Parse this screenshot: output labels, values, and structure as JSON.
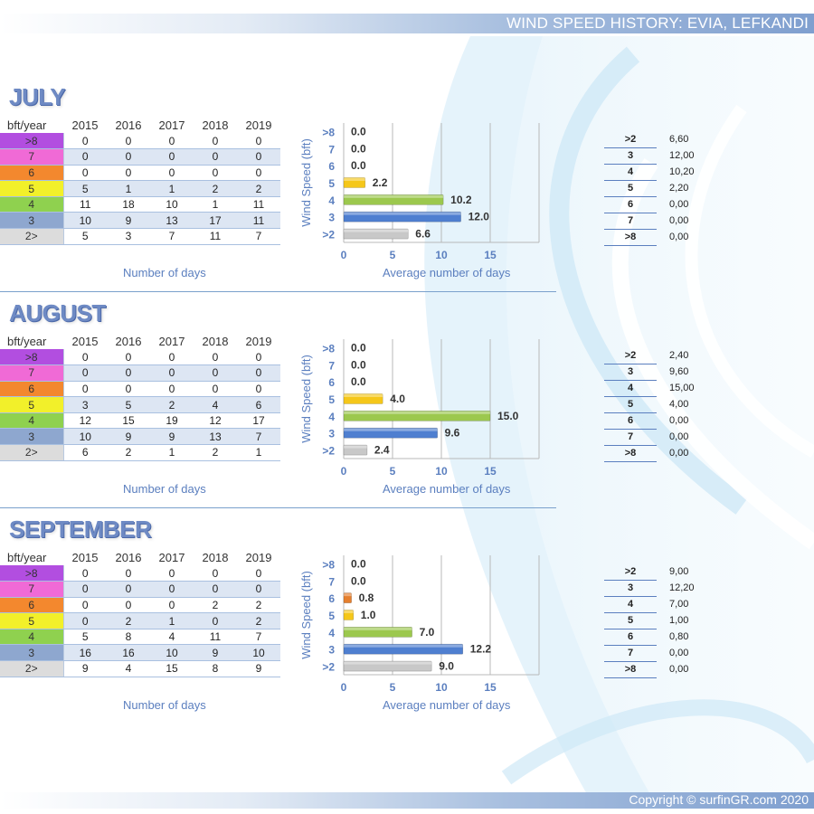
{
  "header": {
    "title": "WIND SPEED HISTORY: EVIA, LEFKANDI"
  },
  "footer": {
    "copyright": "Copyright © surfinGR.com 2020"
  },
  "table_header": {
    "corner": "bft/year",
    "years": [
      "2015",
      "2016",
      "2017",
      "2018",
      "2019"
    ]
  },
  "captions": {
    "days": "Number of days",
    "average": "Average number of days",
    "yaxis": "Wind Speed (bft)"
  },
  "category_colors": {
    ">8": "#b24ee0",
    "7": "#f06ad6",
    "6": "#f3882e",
    "5": "#f2f02a",
    "4": "#8fd14f",
    "3": "#8ea7cf",
    "2>": "#dcdcdc"
  },
  "chart_data": [
    {
      "type": "bar",
      "orientation": "horizontal",
      "title": "JULY",
      "categories": [
        ">8",
        "7",
        "6",
        "5",
        "4",
        "3",
        ">2"
      ],
      "values": [
        0.0,
        0.0,
        0.0,
        2.2,
        10.2,
        12.0,
        6.6
      ],
      "value_labels": [
        "0.0",
        "0.0",
        "0.0",
        "2.2",
        "10.2",
        "12.0",
        "6.6"
      ],
      "bar_colors": [
        "#e57f2e",
        "#e57f2e",
        "#e57f2e",
        "#f5c71a",
        "#9cc84e",
        "#4f7fd0",
        "#c8c8c8"
      ],
      "xlabel": "Average number of days",
      "ylabel": "Wind Speed (bft)",
      "xticks": [
        "0",
        "5",
        "10",
        "15"
      ],
      "xlim": [
        0,
        20
      ],
      "grid": true,
      "table": {
        "rows": [
          {
            "label": ">8",
            "values": [
              "0",
              "0",
              "0",
              "0",
              "0"
            ]
          },
          {
            "label": "7",
            "values": [
              "0",
              "0",
              "0",
              "0",
              "0"
            ]
          },
          {
            "label": "6",
            "values": [
              "0",
              "0",
              "0",
              "0",
              "0"
            ]
          },
          {
            "label": "5",
            "values": [
              "5",
              "1",
              "1",
              "2",
              "2"
            ]
          },
          {
            "label": "4",
            "values": [
              "11",
              "18",
              "10",
              "1",
              "11"
            ]
          },
          {
            "label": "3",
            "values": [
              "10",
              "9",
              "13",
              "17",
              "11"
            ]
          },
          {
            "label": "2>",
            "values": [
              "5",
              "3",
              "7",
              "11",
              "7"
            ]
          }
        ]
      },
      "averages": [
        {
          "k": ">2",
          "v": "6,60"
        },
        {
          "k": "3",
          "v": "12,00"
        },
        {
          "k": "4",
          "v": "10,20"
        },
        {
          "k": "5",
          "v": "2,20"
        },
        {
          "k": "6",
          "v": "0,00"
        },
        {
          "k": "7",
          "v": "0,00"
        },
        {
          "k": ">8",
          "v": "0,00"
        }
      ]
    },
    {
      "type": "bar",
      "orientation": "horizontal",
      "title": "AUGUST",
      "categories": [
        ">8",
        "7",
        "6",
        "5",
        "4",
        "3",
        ">2"
      ],
      "values": [
        0.0,
        0.0,
        0.0,
        4.0,
        15.0,
        9.6,
        2.4
      ],
      "value_labels": [
        "0.0",
        "0.0",
        "0.0",
        "4.0",
        "15.0",
        "9.6",
        "2.4"
      ],
      "bar_colors": [
        "#e57f2e",
        "#e57f2e",
        "#e57f2e",
        "#f5c71a",
        "#9cc84e",
        "#4f7fd0",
        "#c8c8c8"
      ],
      "xlabel": "Average number of days",
      "ylabel": "Wind Speed (bft)",
      "xticks": [
        "0",
        "5",
        "10",
        "15"
      ],
      "xlim": [
        0,
        20
      ],
      "grid": true,
      "table": {
        "rows": [
          {
            "label": ">8",
            "values": [
              "0",
              "0",
              "0",
              "0",
              "0"
            ]
          },
          {
            "label": "7",
            "values": [
              "0",
              "0",
              "0",
              "0",
              "0"
            ]
          },
          {
            "label": "6",
            "values": [
              "0",
              "0",
              "0",
              "0",
              "0"
            ]
          },
          {
            "label": "5",
            "values": [
              "3",
              "5",
              "2",
              "4",
              "6"
            ]
          },
          {
            "label": "4",
            "values": [
              "12",
              "15",
              "19",
              "12",
              "17"
            ]
          },
          {
            "label": "3",
            "values": [
              "10",
              "9",
              "9",
              "13",
              "7"
            ]
          },
          {
            "label": "2>",
            "values": [
              "6",
              "2",
              "1",
              "2",
              "1"
            ]
          }
        ]
      },
      "averages": [
        {
          "k": ">2",
          "v": "2,40"
        },
        {
          "k": "3",
          "v": "9,60"
        },
        {
          "k": "4",
          "v": "15,00"
        },
        {
          "k": "5",
          "v": "4,00"
        },
        {
          "k": "6",
          "v": "0,00"
        },
        {
          "k": "7",
          "v": "0,00"
        },
        {
          "k": ">8",
          "v": "0,00"
        }
      ]
    },
    {
      "type": "bar",
      "orientation": "horizontal",
      "title": "SEPTEMBER",
      "categories": [
        ">8",
        "7",
        "6",
        "5",
        "4",
        "3",
        ">2"
      ],
      "values": [
        0.0,
        0.0,
        0.8,
        1.0,
        7.0,
        12.2,
        9.0
      ],
      "value_labels": [
        "0.0",
        "0.0",
        "0.8",
        "1.0",
        "7.0",
        "12.2",
        "9.0"
      ],
      "bar_colors": [
        "#e57f2e",
        "#e57f2e",
        "#e57f2e",
        "#f5c71a",
        "#9cc84e",
        "#4f7fd0",
        "#c8c8c8"
      ],
      "xlabel": "Average number of days",
      "ylabel": "Wind Speed (bft)",
      "xticks": [
        "0",
        "5",
        "10",
        "15"
      ],
      "xlim": [
        0,
        20
      ],
      "grid": true,
      "table": {
        "rows": [
          {
            "label": ">8",
            "values": [
              "0",
              "0",
              "0",
              "0",
              "0"
            ]
          },
          {
            "label": "7",
            "values": [
              "0",
              "0",
              "0",
              "0",
              "0"
            ]
          },
          {
            "label": "6",
            "values": [
              "0",
              "0",
              "0",
              "2",
              "2"
            ]
          },
          {
            "label": "5",
            "values": [
              "0",
              "2",
              "1",
              "0",
              "2"
            ]
          },
          {
            "label": "4",
            "values": [
              "5",
              "8",
              "4",
              "11",
              "7"
            ]
          },
          {
            "label": "3",
            "values": [
              "16",
              "16",
              "10",
              "9",
              "10"
            ]
          },
          {
            "label": "2>",
            "values": [
              "9",
              "4",
              "15",
              "8",
              "9"
            ]
          }
        ]
      },
      "averages": [
        {
          "k": ">2",
          "v": "9,00"
        },
        {
          "k": "3",
          "v": "12,20"
        },
        {
          "k": "4",
          "v": "7,00"
        },
        {
          "k": "5",
          "v": "1,00"
        },
        {
          "k": "6",
          "v": "0,80"
        },
        {
          "k": "7",
          "v": "0,00"
        },
        {
          "k": ">8",
          "v": "0,00"
        }
      ]
    }
  ]
}
